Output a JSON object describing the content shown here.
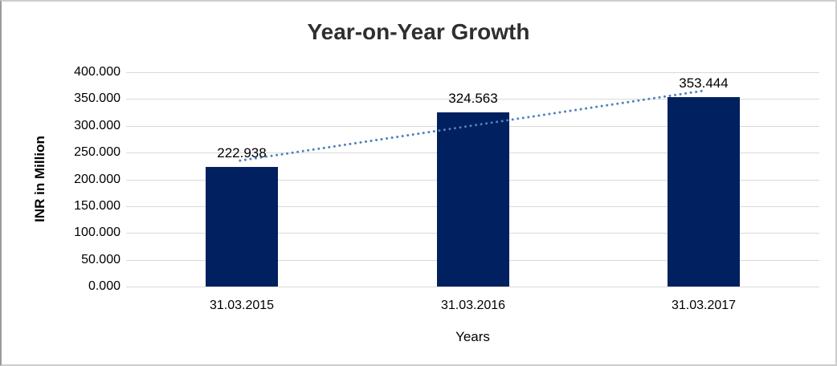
{
  "frame": {
    "background": "#FFFFFF",
    "border_color": "#CDCDCD"
  },
  "chart_data": {
    "type": "bar",
    "title": "Year-on-Year Growth",
    "categories": [
      "31.03.2015",
      "31.03.2016",
      "31.03.2017"
    ],
    "series": [
      {
        "name": "INR in Million",
        "values": [
          222.938,
          324.563,
          353.444
        ]
      }
    ],
    "data_labels": [
      "222.938",
      "324.563",
      "353.444"
    ],
    "xlabel": "Years",
    "ylabel": "INR in Million",
    "ylim": [
      0,
      400
    ],
    "ytick_step": 50,
    "ytick_labels": [
      "0.000",
      "50.000",
      "100.000",
      "150.000",
      "200.000",
      "250.000",
      "300.000",
      "350.000",
      "400.000"
    ],
    "grid": true,
    "legend": "none",
    "bar_color": "#002060",
    "gridline_color": "#D9D9D9",
    "trendline": {
      "type": "linear",
      "style": "dotted",
      "color": "#4F81BD"
    }
  }
}
